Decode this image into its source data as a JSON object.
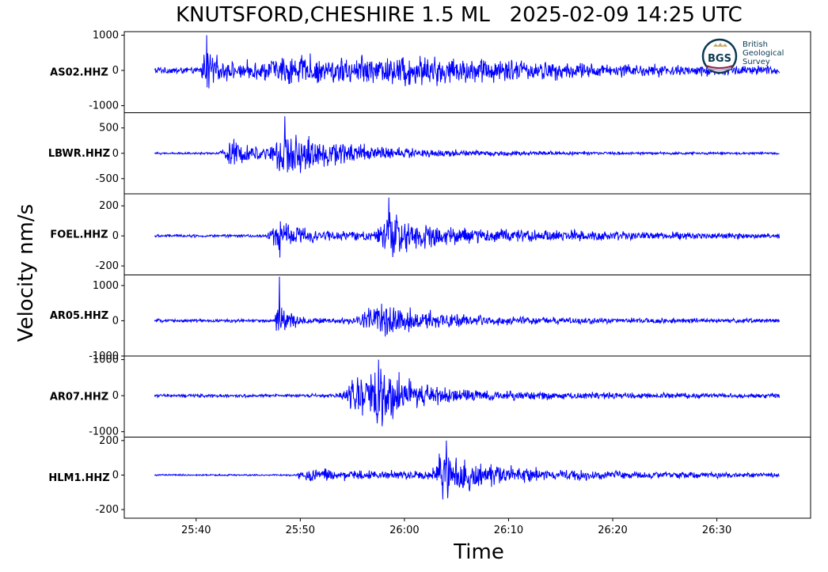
{
  "title": "KNUTSFORD,CHESHIRE 1.5 ML   2025-02-09 14:25 UTC",
  "ylabel": "Velocity nm/s",
  "xlabel": "Time",
  "logo": {
    "abbr": "BGS",
    "lines": [
      "British",
      "Geological",
      "Survey"
    ]
  },
  "colors": {
    "trace": "#0000ff",
    "frame": "#000000"
  },
  "chart_data": {
    "type": "line",
    "x_axis": {
      "unit": "time (mm:ss after 14:25 UTC)",
      "range": [
        "25:33",
        "26:39"
      ],
      "ticks": [
        "25:40",
        "25:50",
        "26:00",
        "26:10",
        "26:20",
        "26:30"
      ],
      "tick_seconds": [
        40,
        50,
        60,
        70,
        80,
        90
      ],
      "range_seconds": [
        33.1,
        99.0
      ],
      "trace_span_seconds": [
        36,
        96
      ]
    },
    "panels": [
      {
        "station": "AS02.HHZ",
        "ylim": [
          -1200,
          1100
        ],
        "yticks": [
          1000,
          0,
          -1000
        ],
        "yticklabels": [
          "1000",
          "0",
          "-1000"
        ],
        "noise": 120,
        "peak": 1000,
        "onset": 40.5,
        "bursts": [
          {
            "t": 41.0,
            "a": 650,
            "w": 1.2
          },
          {
            "t": 49,
            "a": 420,
            "w": 14
          },
          {
            "t": 62,
            "a": 280,
            "w": 16
          }
        ]
      },
      {
        "station": "LBWR.HHZ",
        "ylim": [
          -800,
          800
        ],
        "yticks": [
          500,
          0,
          -500
        ],
        "yticklabels": [
          "500",
          "0",
          "-500"
        ],
        "noise": 25,
        "peak": 730,
        "onset": 42.3,
        "bursts": [
          {
            "t": 43.5,
            "a": 330,
            "w": 2.5
          },
          {
            "t": 48.5,
            "a": 500,
            "w": 3.5
          },
          {
            "t": 53,
            "a": 200,
            "w": 10
          }
        ]
      },
      {
        "station": "FOEL.HHZ",
        "ylim": [
          -260,
          280
        ],
        "yticks": [
          200,
          0,
          -200
        ],
        "yticklabels": [
          "200",
          "0",
          "-200"
        ],
        "noise": 12,
        "peak": 255,
        "onset": 46.8,
        "bursts": [
          {
            "t": 48,
            "a": 150,
            "w": 2.5
          },
          {
            "t": 58.5,
            "a": 170,
            "w": 2
          },
          {
            "t": 62,
            "a": 70,
            "w": 18
          }
        ]
      },
      {
        "station": "AR05.HHZ",
        "ylim": [
          -1000,
          1300
        ],
        "yticks": [
          1000,
          0,
          -1000
        ],
        "yticklabels": [
          "1000",
          "0",
          "-1000"
        ],
        "noise": 60,
        "peak": 1250,
        "onset": 47.6,
        "bursts": [
          {
            "t": 48.0,
            "a": 620,
            "w": 1.2
          },
          {
            "t": 57.5,
            "a": 500,
            "w": 4
          },
          {
            "t": 60,
            "a": 150,
            "w": 16
          }
        ]
      },
      {
        "station": "AR07.HHZ",
        "ylim": [
          -1150,
          1100
        ],
        "yticks": [
          1000,
          0,
          -1000
        ],
        "yticklabels": [
          "1000",
          "0",
          "-1000"
        ],
        "noise": 60,
        "peak": 1000,
        "onset": 47.5,
        "bursts": [
          {
            "t": 55.5,
            "a": 600,
            "w": 3
          },
          {
            "t": 57.5,
            "a": 650,
            "w": 3.5
          },
          {
            "t": 62,
            "a": 150,
            "w": 18
          }
        ]
      },
      {
        "station": "HLM1.HHZ",
        "ylim": [
          -250,
          220
        ],
        "yticks": [
          200,
          0,
          -200
        ],
        "yticklabels": [
          "200",
          "0",
          "-200"
        ],
        "noise": 6,
        "peak": 200,
        "onset": 49.8,
        "bursts": [
          {
            "t": 52,
            "a": 45,
            "w": 8
          },
          {
            "t": 64,
            "a": 150,
            "w": 2.8
          },
          {
            "t": 68,
            "a": 40,
            "w": 22
          }
        ]
      }
    ]
  }
}
